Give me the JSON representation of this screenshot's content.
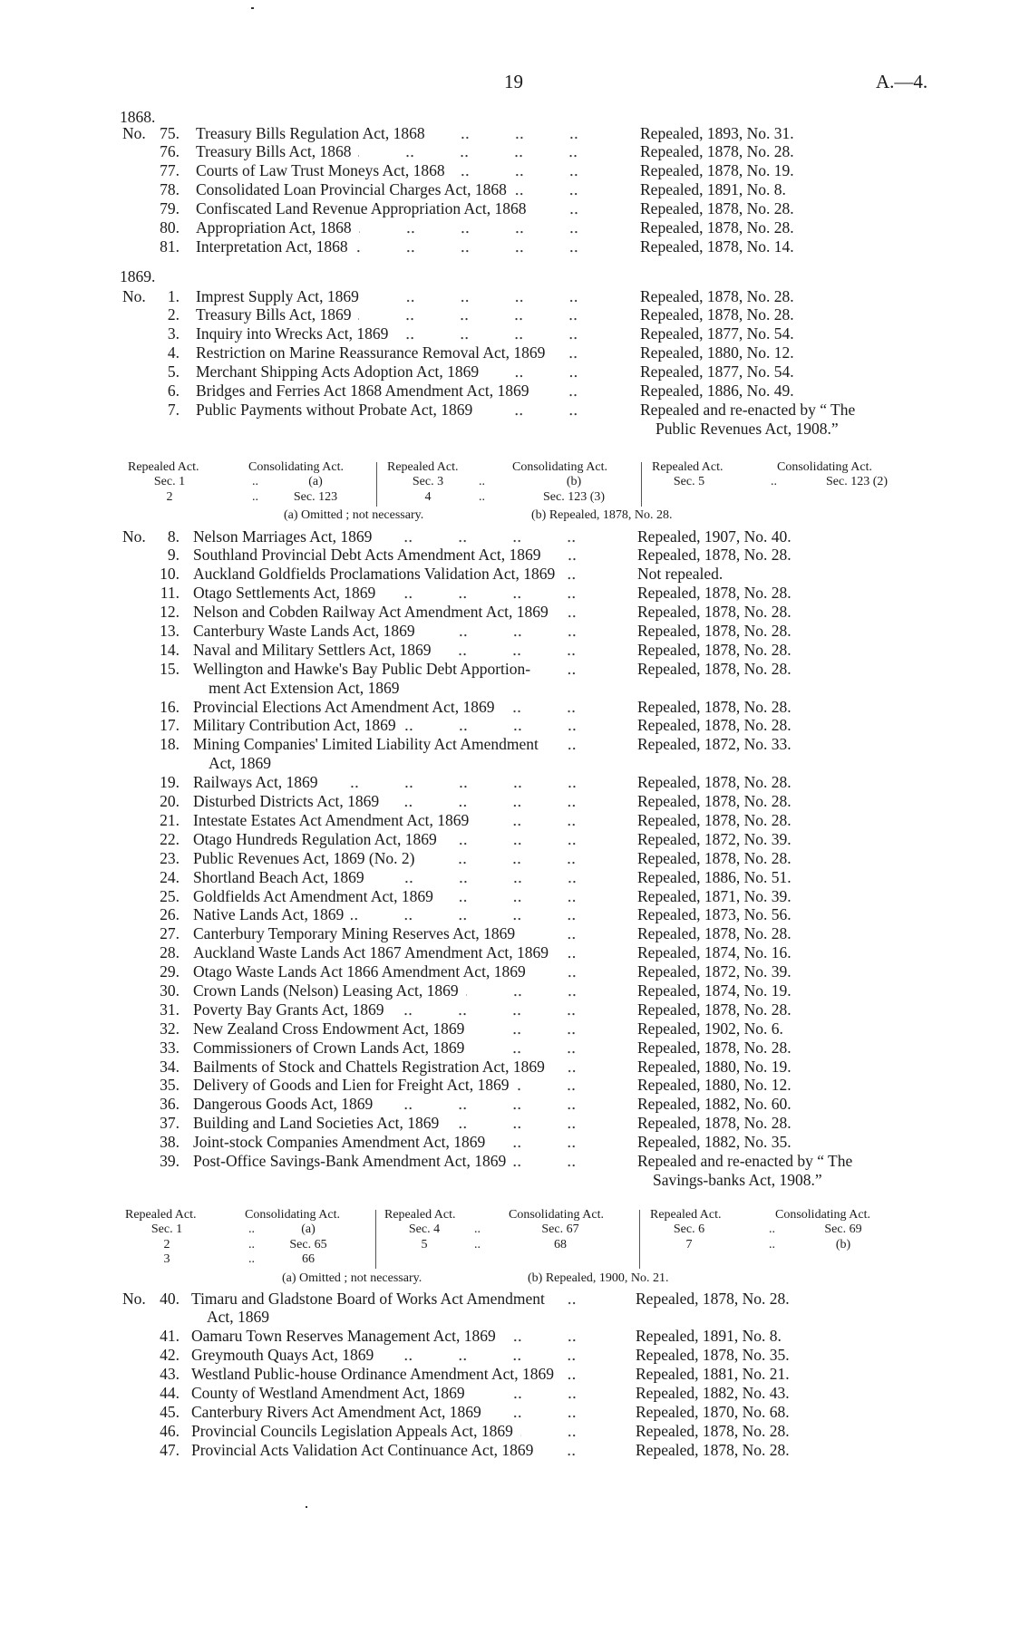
{
  "header": {
    "page_number": "19",
    "reference": "A.—4."
  },
  "sections": [
    {
      "year": "1868.",
      "rows": [
        {
          "no": "75.",
          "prefix": "No.",
          "title": "Treasury Bills Regulation Act, 1868",
          "status": "Repealed, 1893, No. 31."
        },
        {
          "no": "76.",
          "title": "Treasury Bills Act, 1868",
          "status": "Repealed, 1878, No. 28."
        },
        {
          "no": "77.",
          "title": "Courts of Law Trust Moneys Act, 1868",
          "status": "Repealed, 1878, No. 19."
        },
        {
          "no": "78.",
          "title": "Consolidated Loan Provincial Charges Act, 1868",
          "status": "Repealed, 1891, No. 8."
        },
        {
          "no": "79.",
          "title": "Confiscated Land Revenue Appropriation Act, 1868",
          "status": "Repealed, 1878, No. 28."
        },
        {
          "no": "80.",
          "title": "Appropriation Act, 1868",
          "status": "Repealed, 1878, No. 28."
        },
        {
          "no": "81.",
          "title": "Interpretation Act, 1868",
          "status": "Repealed, 1878, No. 14."
        }
      ]
    },
    {
      "year": "1869.",
      "rows": [
        {
          "no": "1.",
          "prefix": "No.",
          "title": "Imprest Supply Act, 1869",
          "status": "Repealed, 1878, No. 28."
        },
        {
          "no": "2.",
          "title": "Treasury Bills Act, 1869",
          "status": "Repealed, 1878, No. 28."
        },
        {
          "no": "3.",
          "title": "Inquiry into Wrecks Act, 1869",
          "status": "Repealed, 1877, No. 54."
        },
        {
          "no": "4.",
          "title": "Restriction on Marine Reassurance Removal Act, 1869",
          "status": "Repealed, 1880, No. 12."
        },
        {
          "no": "5.",
          "title": "Merchant Shipping Acts Adoption Act, 1869",
          "status": "Repealed, 1877, No. 54."
        },
        {
          "no": "6.",
          "title": "Bridges and Ferries Act 1868 Amendment Act, 1869",
          "status": "Repealed, 1886, No. 49."
        },
        {
          "no": "7.",
          "title": "Public Payments without Probate Act, 1869",
          "status": "Repealed and re-enacted by “ The",
          "status2": "Public Revenues Act, 1908.”"
        }
      ]
    },
    {
      "year": "",
      "rows": [
        {
          "no": "8.",
          "prefix": "No.",
          "title": "Nelson Marriages Act, 1869",
          "status": "Repealed, 1907, No. 40."
        },
        {
          "no": "9.",
          "title": "Southland Provincial Debt Acts Amendment Act, 1869",
          "status": "Repealed, 1878, No. 28."
        },
        {
          "no": "10.",
          "title": "Auckland Goldfields Proclamations Validation Act, 1869",
          "status": "Not repealed."
        },
        {
          "no": "11.",
          "title": "Otago Settlements Act, 1869",
          "status": "Repealed, 1878, No. 28."
        },
        {
          "no": "12.",
          "title": "Nelson and Cobden Railway Act Amendment Act, 1869",
          "status": "Repealed, 1878, No. 28."
        },
        {
          "no": "13.",
          "title": "Canterbury Waste Lands Act, 1869",
          "status": "Repealed, 1878, No. 28."
        },
        {
          "no": "14.",
          "title": "Naval and Military Settlers Act, 1869",
          "status": "Repealed, 1878, No. 28."
        },
        {
          "no": "15.",
          "title": "Wellington and Hawke's Bay Public Debt Apportion-",
          "title2": "ment Act Extension Act, 1869",
          "status": "Repealed, 1878, No. 28."
        },
        {
          "no": "16.",
          "title": "Provincial Elections Act Amendment Act, 1869",
          "status": "Repealed, 1878, No. 28."
        },
        {
          "no": "17.",
          "title": "Military Contribution Act, 1869",
          "status": "Repealed, 1878, No. 28."
        },
        {
          "no": "18.",
          "title": "Mining Companies' Limited Liability Act Amendment",
          "title2": "Act, 1869",
          "status": "Repealed, 1872, No. 33."
        },
        {
          "no": "19.",
          "title": "Railways Act, 1869",
          "status": "Repealed, 1878, No. 28."
        },
        {
          "no": "20.",
          "title": "Disturbed Districts Act, 1869",
          "status": "Repealed, 1878, No. 28."
        },
        {
          "no": "21.",
          "title": "Intestate Estates Act Amendment Act, 1869",
          "status": "Repealed, 1878, No. 28."
        },
        {
          "no": "22.",
          "title": "Otago Hundreds Regulation Act, 1869",
          "status": "Repealed, 1872, No. 39."
        },
        {
          "no": "23.",
          "title": "Public Revenues Act, 1869 (No. 2)",
          "status": "Repealed, 1878, No. 28."
        },
        {
          "no": "24.",
          "title": "Shortland Beach Act, 1869",
          "status": "Repealed, 1886, No. 51."
        },
        {
          "no": "25.",
          "title": "Goldfields Act Amendment Act, 1869",
          "status": "Repealed, 1871, No. 39."
        },
        {
          "no": "26.",
          "title": "Native Lands Act, 1869",
          "status": "Repealed, 1873, No. 56."
        },
        {
          "no": "27.",
          "title": "Canterbury Temporary Mining Reserves Act, 1869",
          "status": "Repealed, 1878, No. 28."
        },
        {
          "no": "28.",
          "title": "Auckland Waste Lands Act 1867 Amendment Act, 1869",
          "status": "Repealed, 1874, No. 16."
        },
        {
          "no": "29.",
          "title": "Otago Waste Lands Act 1866 Amendment Act, 1869",
          "status": "Repealed, 1872, No. 39."
        },
        {
          "no": "30.",
          "title": "Crown Lands (Nelson) Leasing Act, 1869",
          "status": "Repealed, 1874, No. 19."
        },
        {
          "no": "31.",
          "title": "Poverty Bay Grants Act, 1869",
          "status": "Repealed, 1878, No. 28."
        },
        {
          "no": "32.",
          "title": "New Zealand Cross Endowment Act, 1869",
          "status": "Repealed, 1902, No. 6."
        },
        {
          "no": "33.",
          "title": "Commissioners of Crown Lands Act, 1869",
          "status": "Repealed, 1878, No. 28."
        },
        {
          "no": "34.",
          "title": "Bailments of Stock and Chattels Registration Act, 1869",
          "status": "Repealed, 1880, No. 19."
        },
        {
          "no": "35.",
          "title": "Delivery of Goods and Lien for Freight Act, 1869",
          "status": "Repealed, 1880, No. 12."
        },
        {
          "no": "36.",
          "title": "Dangerous Goods Act, 1869",
          "status": "Repealed, 1882, No. 60."
        },
        {
          "no": "37.",
          "title": "Building and Land Societies Act, 1869",
          "status": "Repealed, 1878, No. 28."
        },
        {
          "no": "38.",
          "title": "Joint-stock Companies Amendment Act, 1869",
          "status": "Repealed, 1882, No. 35."
        },
        {
          "no": "39.",
          "title": "Post-Office Savings-Bank Amendment Act, 1869",
          "status": "Repealed and re-enacted by “ The",
          "status2": "Savings-banks Act, 1908.”"
        }
      ]
    },
    {
      "year": "",
      "rows": [
        {
          "no": "40.",
          "prefix": "No.",
          "title": "Timaru and Gladstone Board of Works Act Amendment",
          "title2": "Act, 1869",
          "status": "Repealed, 1878, No. 28."
        },
        {
          "no": "41.",
          "title": "Oamaru Town Reserves Management Act, 1869",
          "status": "Repealed, 1891, No. 8."
        },
        {
          "no": "42.",
          "title": "Greymouth Quays Act, 1869",
          "status": "Repealed, 1878, No. 35."
        },
        {
          "no": "43.",
          "title": "Westland Public-house Ordinance Amendment Act, 1869",
          "status": "Repealed, 1881, No. 21."
        },
        {
          "no": "44.",
          "title": "County of Westland Amendment Act, 1869",
          "status": "Repealed, 1882, No. 43."
        },
        {
          "no": "45.",
          "title": "Canterbury Rivers Act Amendment Act, 1869",
          "status": "Repealed, 1870, No. 68."
        },
        {
          "no": "46.",
          "title": "Provincial Councils Legislation Appeals Act, 1869",
          "status": "Repealed, 1878, No. 28."
        },
        {
          "no": "47.",
          "title": "Provincial Acts Validation Act Continuance Act, 1869",
          "status": "Repealed, 1878, No. 28."
        }
      ]
    }
  ],
  "tables": [
    {
      "head_repealed": "Repealed Act.",
      "head_consolidating": "Consolidating Act.",
      "groups": [
        {
          "rows": [
            [
              "Sec. 1",
              "..",
              "(a)"
            ],
            [
              "2",
              "..",
              "Sec. 123"
            ]
          ]
        },
        {
          "rows": [
            [
              "Sec. 3",
              "..",
              "(b)"
            ],
            [
              "4",
              "..",
              "Sec. 123 (3)"
            ]
          ]
        },
        {
          "rows": [
            [
              "Sec. 5",
              "..",
              "Sec. 123 (2)"
            ]
          ]
        }
      ],
      "footnotes": [
        "(a) Omitted ; not necessary.",
        "(b) Repealed, 1878, No. 28."
      ]
    },
    {
      "head_repealed": "Repealed Act.",
      "head_consolidating": "Consolidating Act.",
      "groups": [
        {
          "rows": [
            [
              "Sec. 1",
              "..",
              "(a)"
            ],
            [
              "2",
              "..",
              "Sec. 65"
            ],
            [
              "3",
              "..",
              "66"
            ]
          ]
        },
        {
          "rows": [
            [
              "Sec. 4",
              "..",
              "Sec. 67"
            ],
            [
              "5",
              "..",
              "68"
            ]
          ]
        },
        {
          "rows": [
            [
              "Sec. 6",
              "..",
              "Sec. 69"
            ],
            [
              "7",
              "..",
              "(b)"
            ]
          ]
        }
      ],
      "footnotes": [
        "(a) Omitted ; not necessary.",
        "(b) Repealed, 1900, No. 21."
      ]
    }
  ]
}
